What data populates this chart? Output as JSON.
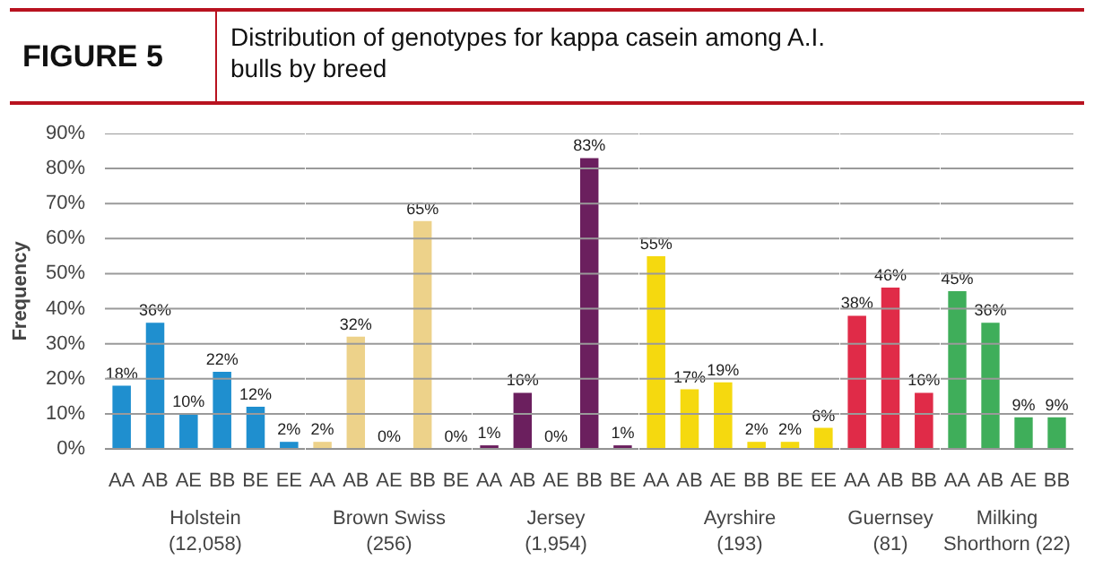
{
  "chart_data": [
    {
      "type": "bar",
      "title": "FIGURE 5",
      "subtitle": "Distribution of genotypes for kappa casein among A.I. bulls by breed",
      "xlabel": "Holstein\n(12,058)",
      "ylabel": "Frequency",
      "categories": [
        "AA",
        "AB",
        "AE",
        "BB",
        "BE",
        "EE"
      ],
      "values": [
        18,
        36,
        10,
        22,
        12,
        2
      ],
      "value_labels": [
        "18%",
        "36%",
        "10%",
        "22%",
        "12%",
        "2%"
      ],
      "color": "#1f8fcf",
      "ylim": [
        0,
        90
      ],
      "yticks": [
        {
          "value": 0,
          "label": "0%"
        },
        {
          "value": 10,
          "label": "10%"
        },
        {
          "value": 20,
          "label": "20%"
        },
        {
          "value": 30,
          "label": "30%"
        },
        {
          "value": 40,
          "label": "40%"
        },
        {
          "value": 50,
          "label": "50%"
        },
        {
          "value": 60,
          "label": "60%"
        },
        {
          "value": 70,
          "label": "70%"
        },
        {
          "value": 80,
          "label": "80%"
        },
        {
          "value": 90,
          "label": "90%"
        }
      ],
      "grid": "y"
    },
    {
      "type": "bar",
      "xlabel": "Brown Swiss\n(256)",
      "categories": [
        "AA",
        "AB",
        "AE",
        "BB",
        "BE"
      ],
      "values": [
        2,
        32,
        0,
        65,
        0
      ],
      "value_labels": [
        "2%",
        "32%",
        "0%",
        "65%",
        "0%"
      ],
      "color": "#edd28a",
      "ylim": [
        0,
        90
      ],
      "yticks": [
        0,
        10,
        20,
        30,
        40,
        50,
        60,
        70,
        80,
        90
      ],
      "grid": "y",
      "tick_labels": "x"
    },
    {
      "type": "bar",
      "xlabel": "Jersey\n(1,954)",
      "categories": [
        "AA",
        "AB",
        "AE",
        "BB",
        "BE"
      ],
      "values": [
        1,
        16,
        0,
        83,
        1
      ],
      "value_labels": [
        "1%",
        "16%",
        "0%",
        "83%",
        "1%"
      ],
      "color": "#6b1f5e",
      "ylim": [
        0,
        90
      ],
      "yticks": [
        0,
        10,
        20,
        30,
        40,
        50,
        60,
        70,
        80,
        90
      ],
      "grid": "y",
      "tick_labels": "x"
    },
    {
      "type": "bar",
      "xlabel": "Ayrshire\n(193)",
      "categories": [
        "AA",
        "AB",
        "AE",
        "BB",
        "BE",
        "EE"
      ],
      "values": [
        55,
        17,
        19,
        2,
        2,
        6
      ],
      "value_labels": [
        "55%",
        "17%",
        "19%",
        "2%",
        "2%",
        "6%"
      ],
      "color": "#f5d90f",
      "ylim": [
        0,
        90
      ],
      "yticks": [
        0,
        10,
        20,
        30,
        40,
        50,
        60,
        70,
        80,
        90
      ],
      "grid": "y",
      "tick_labels": "x"
    },
    {
      "type": "bar",
      "xlabel": "Guernsey\n(81)",
      "categories": [
        "AA",
        "AB",
        "BB"
      ],
      "values": [
        38,
        46,
        16
      ],
      "value_labels": [
        "38%",
        "46%",
        "16%"
      ],
      "color": "#e02b48",
      "ylim": [
        0,
        90
      ],
      "yticks": [
        0,
        10,
        20,
        30,
        40,
        50,
        60,
        70,
        80,
        90
      ],
      "grid": "y",
      "tick_labels": "x"
    },
    {
      "type": "bar",
      "xlabel": "Milking\nShorthorn (22)",
      "categories": [
        "AA",
        "AB",
        "AE",
        "BB"
      ],
      "values": [
        45,
        36,
        9,
        9
      ],
      "value_labels": [
        "45%",
        "36%",
        "9%",
        "9%"
      ],
      "color": "#3fae5a",
      "ylim": [
        0,
        90
      ],
      "yticks": [
        0,
        10,
        20,
        30,
        40,
        50,
        60,
        70,
        80,
        90
      ],
      "grid": "y",
      "tick_labels": "x"
    }
  ]
}
